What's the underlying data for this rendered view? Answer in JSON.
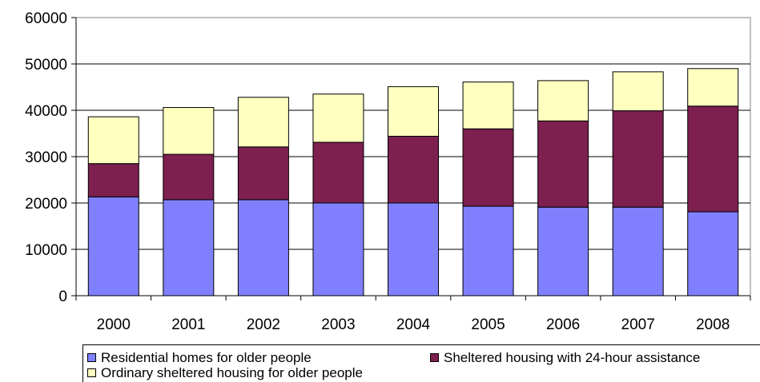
{
  "chart_data": {
    "type": "bar",
    "stacked": true,
    "title": "",
    "xlabel": "",
    "ylabel": "",
    "categories": [
      "2000",
      "2001",
      "2002",
      "2003",
      "2004",
      "2005",
      "2006",
      "2007",
      "2008"
    ],
    "ylim": [
      0,
      60000
    ],
    "yticks": [
      "0",
      "10000",
      "20000",
      "30000",
      "40000",
      "50000",
      "60000"
    ],
    "grid": true,
    "legend": "bottom",
    "series": [
      {
        "name": "Residential homes for older people",
        "color": "#8080ff",
        "values": [
          21300,
          20700,
          20700,
          20000,
          20000,
          19300,
          19100,
          19100,
          18100
        ]
      },
      {
        "name": "Sheltered housing with 24-hour assistance",
        "color": "#7d1f4f",
        "values": [
          7200,
          9800,
          11400,
          13100,
          14400,
          16700,
          18600,
          20800,
          22800
        ]
      },
      {
        "name": "Ordinary sheltered housing for older people",
        "color": "#ffffc0",
        "values": [
          10100,
          10100,
          10700,
          10400,
          10700,
          10100,
          8700,
          8400,
          8100
        ]
      }
    ]
  }
}
